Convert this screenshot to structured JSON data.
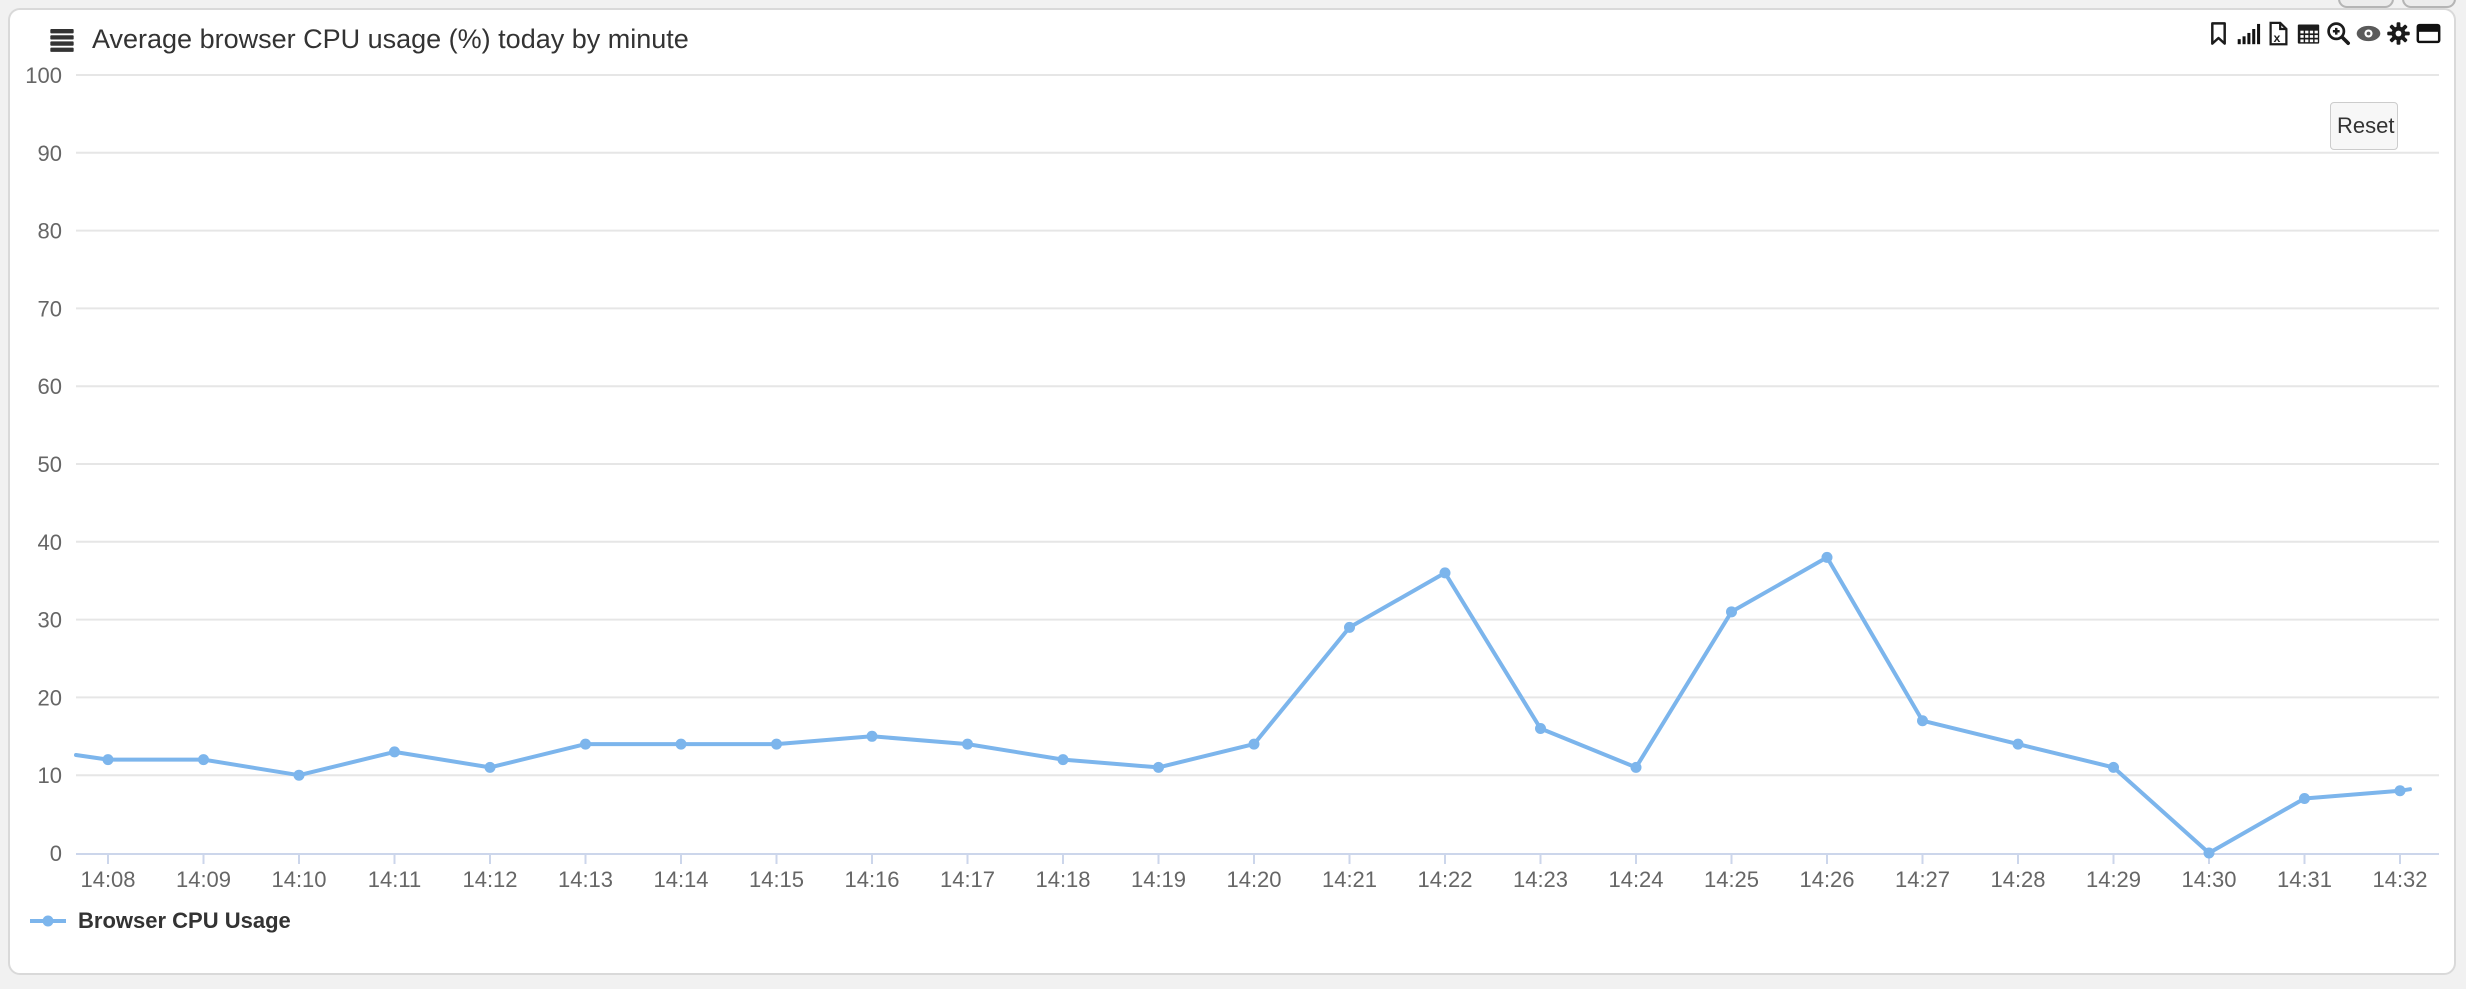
{
  "page": {
    "background_color": "#f1f1f1"
  },
  "panel": {
    "title": "Average browser CPU usage (%) today by minute",
    "toolbar": {
      "icons": [
        "bookmark-icon",
        "bar-chart-icon",
        "export-file-icon",
        "calendar-icon",
        "zoom-in-icon",
        "eye-icon",
        "gear-icon",
        "window-icon"
      ]
    },
    "reset_button": {
      "label": "Reset"
    }
  },
  "legend": {
    "items": [
      {
        "label": "Browser CPU Usage",
        "color": "#7cb5ec"
      }
    ]
  },
  "chart_data": {
    "type": "line",
    "title": "Average browser CPU usage (%) today by minute",
    "xlabel": "",
    "ylabel": "",
    "x_categories": [
      "14:08",
      "14:09",
      "14:10",
      "14:11",
      "14:12",
      "14:13",
      "14:14",
      "14:15",
      "14:16",
      "14:17",
      "14:18",
      "14:19",
      "14:20",
      "14:21",
      "14:22",
      "14:23",
      "14:24",
      "14:25",
      "14:26",
      "14:27",
      "14:28",
      "14:29",
      "14:30",
      "14:31",
      "14:32"
    ],
    "series": [
      {
        "name": "Browser CPU Usage",
        "color": "#7cb5ec",
        "values": [
          12,
          12,
          10,
          13,
          11,
          14,
          14,
          14,
          15,
          14,
          12,
          11,
          14,
          29,
          36,
          16,
          11,
          31,
          38,
          17,
          14,
          11,
          0,
          7,
          8
        ]
      }
    ],
    "partial_edge_segments": {
      "left_value": 12.6,
      "right_value": 8.2
    },
    "ylim": [
      0,
      100
    ],
    "yticks": [
      0,
      10,
      20,
      30,
      40,
      50,
      60,
      70,
      80,
      90,
      100
    ],
    "grid": true,
    "legend_position": "bottom-left",
    "colors": {
      "grid": "#e6e6e6",
      "axis": "#ccd6eb",
      "tick": "#ccd6eb",
      "axis_label": "#666666",
      "series": "#7cb5ec"
    }
  }
}
